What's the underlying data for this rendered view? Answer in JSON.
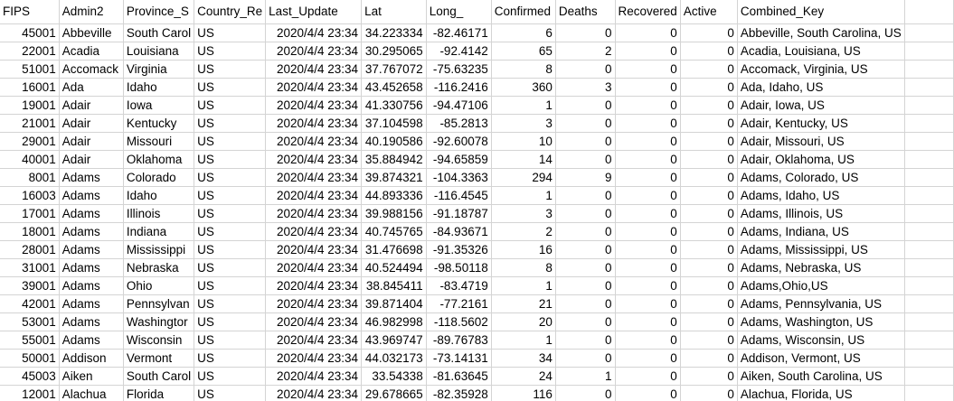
{
  "sheet": {
    "columns": [
      {
        "key": "fips",
        "label": "FIPS",
        "align": "left"
      },
      {
        "key": "admin2",
        "label": "Admin2",
        "align": "left"
      },
      {
        "key": "province",
        "label": "Province_S",
        "align": "left"
      },
      {
        "key": "country",
        "label": "Country_Re",
        "align": "left"
      },
      {
        "key": "last_update",
        "label": "Last_Update",
        "align": "left"
      },
      {
        "key": "lat",
        "label": "Lat",
        "align": "left"
      },
      {
        "key": "long",
        "label": "Long_",
        "align": "left"
      },
      {
        "key": "confirmed",
        "label": "Confirmed",
        "align": "left"
      },
      {
        "key": "deaths",
        "label": "Deaths",
        "align": "left"
      },
      {
        "key": "recovered",
        "label": "Recovered",
        "align": "left"
      },
      {
        "key": "active",
        "label": "Active",
        "align": "left"
      },
      {
        "key": "combined_key",
        "label": "Combined_Key",
        "align": "left"
      },
      {
        "key": "extra",
        "label": "",
        "align": "left"
      }
    ],
    "rows": [
      [
        "45001",
        "Abbeville",
        "South Carol",
        "US",
        "2020/4/4 23:34",
        "34.223334",
        "-82.46171",
        "6",
        "0",
        "0",
        "0",
        "Abbeville, South Carolina, US",
        ""
      ],
      [
        "22001",
        "Acadia",
        "Louisiana",
        "US",
        "2020/4/4 23:34",
        "30.295065",
        "-92.4142",
        "65",
        "2",
        "0",
        "0",
        "Acadia, Louisiana, US",
        ""
      ],
      [
        "51001",
        "Accomack",
        "Virginia",
        "US",
        "2020/4/4 23:34",
        "37.767072",
        "-75.63235",
        "8",
        "0",
        "0",
        "0",
        "Accomack, Virginia, US",
        ""
      ],
      [
        "16001",
        "Ada",
        "Idaho",
        "US",
        "2020/4/4 23:34",
        "43.452658",
        "-116.2416",
        "360",
        "3",
        "0",
        "0",
        "Ada, Idaho, US",
        ""
      ],
      [
        "19001",
        "Adair",
        "Iowa",
        "US",
        "2020/4/4 23:34",
        "41.330756",
        "-94.47106",
        "1",
        "0",
        "0",
        "0",
        "Adair, Iowa, US",
        ""
      ],
      [
        "21001",
        "Adair",
        "Kentucky",
        "US",
        "2020/4/4 23:34",
        "37.104598",
        "-85.2813",
        "3",
        "0",
        "0",
        "0",
        "Adair, Kentucky, US",
        ""
      ],
      [
        "29001",
        "Adair",
        "Missouri",
        "US",
        "2020/4/4 23:34",
        "40.190586",
        "-92.60078",
        "10",
        "0",
        "0",
        "0",
        "Adair, Missouri, US",
        ""
      ],
      [
        "40001",
        "Adair",
        "Oklahoma",
        "US",
        "2020/4/4 23:34",
        "35.884942",
        "-94.65859",
        "14",
        "0",
        "0",
        "0",
        "Adair, Oklahoma, US",
        ""
      ],
      [
        "8001",
        "Adams",
        "Colorado",
        "US",
        "2020/4/4 23:34",
        "39.874321",
        "-104.3363",
        "294",
        "9",
        "0",
        "0",
        "Adams, Colorado, US",
        ""
      ],
      [
        "16003",
        "Adams",
        "Idaho",
        "US",
        "2020/4/4 23:34",
        "44.893336",
        "-116.4545",
        "1",
        "0",
        "0",
        "0",
        "Adams, Idaho, US",
        ""
      ],
      [
        "17001",
        "Adams",
        "Illinois",
        "US",
        "2020/4/4 23:34",
        "39.988156",
        "-91.18787",
        "3",
        "0",
        "0",
        "0",
        "Adams, Illinois, US",
        ""
      ],
      [
        "18001",
        "Adams",
        "Indiana",
        "US",
        "2020/4/4 23:34",
        "40.745765",
        "-84.93671",
        "2",
        "0",
        "0",
        "0",
        "Adams, Indiana, US",
        ""
      ],
      [
        "28001",
        "Adams",
        "Mississippi",
        "US",
        "2020/4/4 23:34",
        "31.476698",
        "-91.35326",
        "16",
        "0",
        "0",
        "0",
        "Adams, Mississippi, US",
        ""
      ],
      [
        "31001",
        "Adams",
        "Nebraska",
        "US",
        "2020/4/4 23:34",
        "40.524494",
        "-98.50118",
        "8",
        "0",
        "0",
        "0",
        "Adams, Nebraska, US",
        ""
      ],
      [
        "39001",
        "Adams",
        "Ohio",
        "US",
        "2020/4/4 23:34",
        "38.845411",
        "-83.4719",
        "1",
        "0",
        "0",
        "0",
        "Adams,Ohio,US",
        ""
      ],
      [
        "42001",
        "Adams",
        "Pennsylvan",
        "US",
        "2020/4/4 23:34",
        "39.871404",
        "-77.2161",
        "21",
        "0",
        "0",
        "0",
        "Adams, Pennsylvania, US",
        ""
      ],
      [
        "53001",
        "Adams",
        "Washingtor",
        "US",
        "2020/4/4 23:34",
        "46.982998",
        "-118.5602",
        "20",
        "0",
        "0",
        "0",
        "Adams, Washington, US",
        ""
      ],
      [
        "55001",
        "Adams",
        "Wisconsin",
        "US",
        "2020/4/4 23:34",
        "43.969747",
        "-89.76783",
        "1",
        "0",
        "0",
        "0",
        "Adams, Wisconsin, US",
        ""
      ],
      [
        "50001",
        "Addison",
        "Vermont",
        "US",
        "2020/4/4 23:34",
        "44.032173",
        "-73.14131",
        "34",
        "0",
        "0",
        "0",
        "Addison, Vermont, US",
        ""
      ],
      [
        "45003",
        "Aiken",
        "South Carol",
        "US",
        "2020/4/4 23:34",
        "33.54338",
        "-81.63645",
        "24",
        "1",
        "0",
        "0",
        "Aiken, South Carolina, US",
        ""
      ],
      [
        "12001",
        "Alachua",
        "Florida",
        "US",
        "2020/4/4 23:34",
        "29.678665",
        "-82.35928",
        "116",
        "0",
        "0",
        "0",
        "Alachua, Florida, US",
        ""
      ]
    ],
    "row_align": [
      "right",
      "left",
      "left",
      "left",
      "right",
      "right",
      "right",
      "right",
      "right",
      "right",
      "right",
      "left",
      "left"
    ]
  }
}
